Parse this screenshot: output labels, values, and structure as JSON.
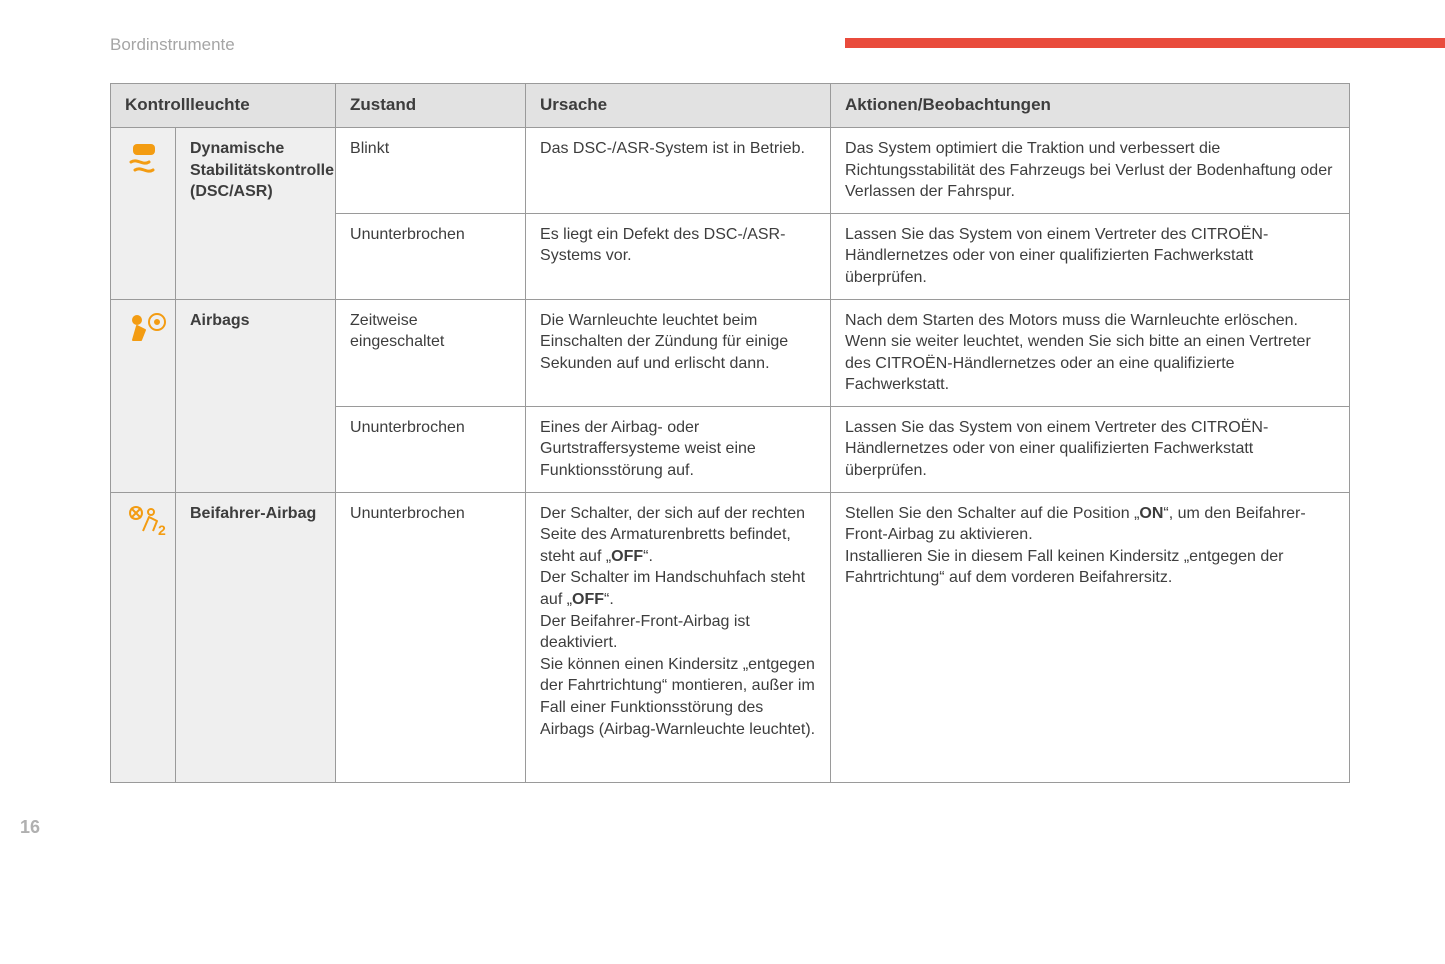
{
  "section_title": "Bordinstrumente",
  "page_number": "16",
  "colors": {
    "accent_bar": "#e94b3c",
    "icon_color": "#f39c12",
    "header_bg": "#e2e2e2",
    "name_bg": "#efefef",
    "border": "#9a9a9a",
    "text": "#3d3d3d",
    "muted": "#a5a5a5"
  },
  "table": {
    "headers": {
      "col1": "Kontrollleuchte",
      "col2": "Zustand",
      "col3": "Ursache",
      "col4": "Aktionen/Beobachtungen"
    },
    "rows": [
      {
        "icon": "dsc",
        "name": "Dynamische Stabilitätskontrolle (DSC/ASR)",
        "states": [
          {
            "state": "Blinkt",
            "cause": "Das DSC-/ASR-System ist in Betrieb.",
            "action": "Das System optimiert die Traktion und verbessert die Richtungsstabilität des Fahrzeugs bei Verlust der Bodenhaftung oder Verlassen der Fahrspur."
          },
          {
            "state": "Ununterbrochen",
            "cause": "Es liegt ein Defekt des DSC-/ASR-Systems vor.",
            "action": "Lassen Sie das System von einem Vertreter des CITROËN-Händlernetzes oder von einer qualifizierten Fachwerkstatt überprüfen."
          }
        ]
      },
      {
        "icon": "airbag",
        "name": "Airbags",
        "states": [
          {
            "state": "Zeitweise eingeschaltet",
            "cause": "Die Warnleuchte leuchtet beim Einschalten der Zündung für einige Sekunden auf und erlischt dann.",
            "action_small": true,
            "action": "Nach dem Starten des Motors muss die Warnleuchte erlöschen. Wenn sie weiter leuchtet, wenden Sie sich bitte an einen Vertreter des CITROËN-Händlernetzes oder an eine qualifizierte Fachwerkstatt."
          },
          {
            "state": "Ununterbrochen",
            "cause": "Eines der Airbag- oder Gurtstraffersysteme weist eine Funktionsstörung auf.",
            "action": "Lassen Sie das System von einem Vertreter des CITROËN-Händlernetzes oder von einer qualifizierten Fachwerkstatt überprüfen."
          }
        ]
      },
      {
        "icon": "passenger-airbag",
        "name": "Beifahrer-Airbag",
        "states": [
          {
            "state": "Ununterbrochen",
            "cause_html": "Der Schalter, der sich auf der rechten Seite des Armaturenbretts befindet, steht auf „<b>OFF</b>“.<br>Der Schalter im Handschuhfach steht auf „<b>OFF</b>“.<br>Der Beifahrer-Front-Airbag ist deaktiviert.<br>Sie können einen Kindersitz „entgegen der Fahrtrichtung“ montieren, außer im Fall einer Funktionsstörung des Airbags (Airbag-Warnleuchte leuchtet).",
            "action_html": "Stellen Sie den Schalter auf die Position „<b>ON</b>“, um den Beifahrer-Front-Airbag zu aktivieren.<br>Installieren Sie in diesem Fall keinen Kindersitz „entgegen der Fahrtrichtung“ auf dem vorderen Beifahrersitz.",
            "tall": true
          }
        ]
      }
    ]
  }
}
